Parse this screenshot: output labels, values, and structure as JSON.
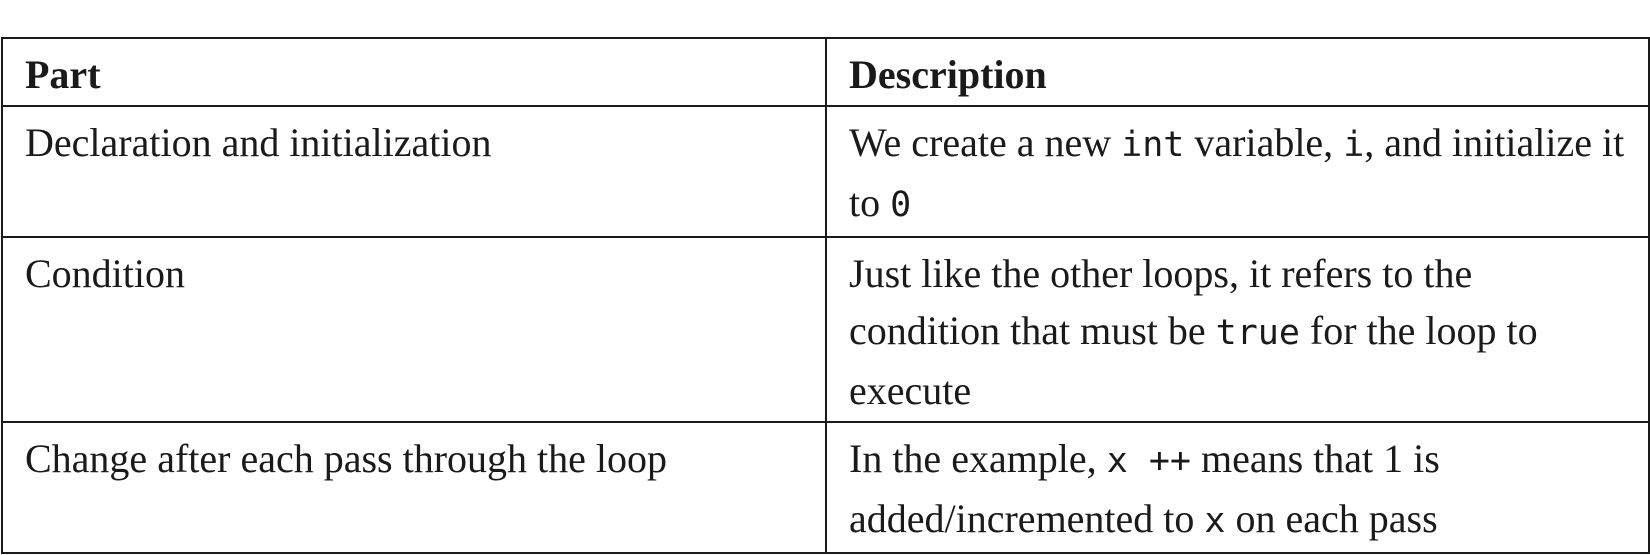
{
  "table": {
    "headers": {
      "part": "Part",
      "description": "Description"
    },
    "rows": [
      {
        "part": "Declaration and initialization",
        "description": {
          "t1": "We create a new ",
          "c1": "int",
          "t2": " variable, ",
          "c2": "i",
          "t3": ", and initialize it to ",
          "c3": "0"
        }
      },
      {
        "part": "Condition",
        "description": {
          "t1": "Just like the other loops, it refers to the condition that must be ",
          "c1": "true",
          "t2": " for the loop to execute"
        }
      },
      {
        "part": "Change after each pass through the loop",
        "description": {
          "t1": "In the example, ",
          "c1": "x ++",
          "t2": " means that 1 is added/incremented to ",
          "c2": "x",
          "t3": " on each pass"
        }
      }
    ]
  }
}
